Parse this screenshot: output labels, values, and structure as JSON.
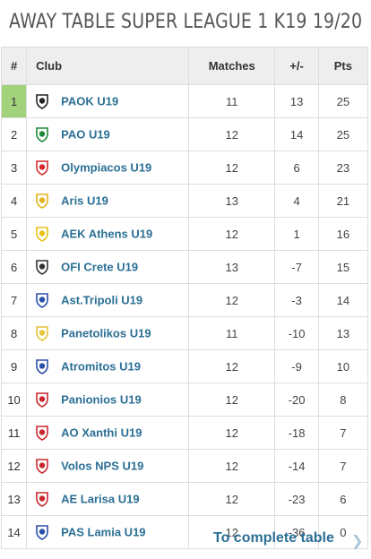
{
  "title": "AWAY TABLE SUPER LEAGUE 1 K19 19/20",
  "columns": {
    "rank": "#",
    "club": "Club",
    "matches": "Matches",
    "diff": "+/-",
    "pts": "Pts"
  },
  "rows": [
    {
      "rank": "1",
      "club": "PAOK U19",
      "matches": "11",
      "diff": "13",
      "pts": "25",
      "crest": "paok-crest-icon",
      "crest_color": "#222222"
    },
    {
      "rank": "2",
      "club": "PAO U19",
      "matches": "12",
      "diff": "14",
      "pts": "25",
      "crest": "pao-crest-icon",
      "crest_color": "#1f8a3a"
    },
    {
      "rank": "3",
      "club": "Olympiacos U19",
      "matches": "12",
      "diff": "6",
      "pts": "23",
      "crest": "olympiacos-crest-icon",
      "crest_color": "#d42a2a"
    },
    {
      "rank": "4",
      "club": "Aris U19",
      "matches": "13",
      "diff": "4",
      "pts": "21",
      "crest": "aris-crest-icon",
      "crest_color": "#e3b21c"
    },
    {
      "rank": "5",
      "club": "AEK Athens U19",
      "matches": "12",
      "diff": "1",
      "pts": "16",
      "crest": "aek-crest-icon",
      "crest_color": "#e8c21a"
    },
    {
      "rank": "6",
      "club": "OFI Crete U19",
      "matches": "13",
      "diff": "-7",
      "pts": "15",
      "crest": "ofi-crest-icon",
      "crest_color": "#333333"
    },
    {
      "rank": "7",
      "club": "Ast.Tripoli U19",
      "matches": "12",
      "diff": "-3",
      "pts": "14",
      "crest": "asteras-crest-icon",
      "crest_color": "#2a4fa8"
    },
    {
      "rank": "8",
      "club": "Panetolikos U19",
      "matches": "11",
      "diff": "-10",
      "pts": "13",
      "crest": "panetolikos-crest-icon",
      "crest_color": "#e5c43a"
    },
    {
      "rank": "9",
      "club": "Atromitos U19",
      "matches": "12",
      "diff": "-9",
      "pts": "10",
      "crest": "atromitos-crest-icon",
      "crest_color": "#2a4fa8"
    },
    {
      "rank": "10",
      "club": "Panionios U19",
      "matches": "12",
      "diff": "-20",
      "pts": "8",
      "crest": "panionios-crest-icon",
      "crest_color": "#c8282e"
    },
    {
      "rank": "11",
      "club": "AO Xanthi U19",
      "matches": "12",
      "diff": "-18",
      "pts": "7",
      "crest": "xanthi-crest-icon",
      "crest_color": "#c8282e"
    },
    {
      "rank": "12",
      "club": "Volos NPS U19",
      "matches": "12",
      "diff": "-14",
      "pts": "7",
      "crest": "volos-crest-icon",
      "crest_color": "#c8282e"
    },
    {
      "rank": "13",
      "club": "AE Larisa U19",
      "matches": "12",
      "diff": "-23",
      "pts": "6",
      "crest": "larisa-crest-icon",
      "crest_color": "#c8282e"
    },
    {
      "rank": "14",
      "club": "PAS Lamia U19",
      "matches": "12",
      "diff": "-36",
      "pts": "0",
      "crest": "lamia-crest-icon",
      "crest_color": "#2a4fa8"
    }
  ],
  "leader_color": "#a3d27d",
  "link_color": "#2b6f95",
  "footer": {
    "link_label": "To complete table",
    "chevron_icon": "chevron-right-icon"
  }
}
